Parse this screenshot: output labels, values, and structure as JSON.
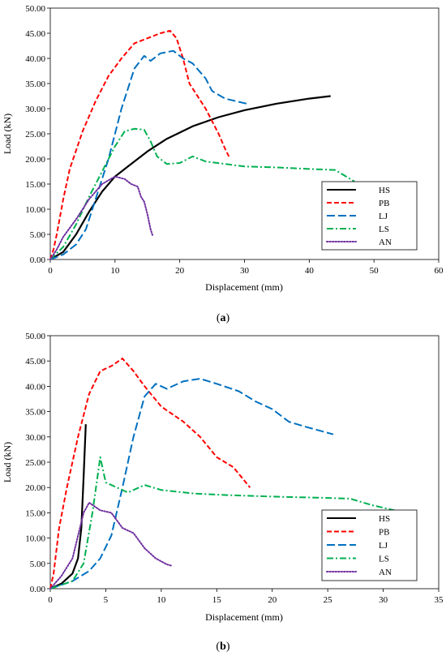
{
  "figure": {
    "panels": [
      {
        "caption_open": "(",
        "caption_letter": "a",
        "caption_close": ")"
      },
      {
        "caption_open": "(",
        "caption_letter": "b",
        "caption_close": ")"
      }
    ]
  },
  "chart_data": [
    {
      "type": "line",
      "xlabel": "Displacement (mm)",
      "ylabel": "Load (kN)",
      "xlim": [
        0,
        60
      ],
      "ylim": [
        0,
        50
      ],
      "xticks": [
        "0",
        "10",
        "20",
        "30",
        "40",
        "50",
        "60"
      ],
      "yticks": [
        "0.00",
        "5.00",
        "10.00",
        "15.00",
        "20.00",
        "25.00",
        "30.00",
        "35.00",
        "40.00",
        "45.00",
        "50.00"
      ],
      "grid": false,
      "legend": "bottom-right",
      "series": [
        {
          "name": "HS",
          "color": "#000000",
          "dash": "solid",
          "x": [
            0,
            2,
            4,
            6,
            8,
            10,
            12,
            15,
            18,
            22,
            26,
            30,
            35,
            40,
            43.3
          ],
          "y": [
            0,
            1.5,
            5,
            9.5,
            13.5,
            16.5,
            18.5,
            21.5,
            24,
            26.5,
            28.3,
            29.7,
            31,
            32,
            32.5
          ]
        },
        {
          "name": "PB",
          "color": "#ff0000",
          "dash": "dashed",
          "x": [
            0,
            0.5,
            1,
            2,
            3,
            5,
            7,
            9,
            11,
            13,
            15,
            17,
            18.5,
            19.5,
            20.5,
            21.5,
            22.5,
            24,
            26,
            27,
            27.6
          ],
          "y": [
            0,
            2,
            5,
            12,
            18,
            25.5,
            31.5,
            36.5,
            40,
            43,
            44,
            45,
            45.5,
            44,
            40,
            35,
            33,
            30,
            25,
            22,
            20.5
          ]
        },
        {
          "name": "LJ",
          "color": "#0070c0",
          "dash": "longdash",
          "x": [
            0,
            2,
            4,
            5.5,
            7,
            9,
            11,
            13,
            14.5,
            15.5,
            17,
            19,
            20.5,
            22,
            24,
            25,
            27,
            30.3
          ],
          "y": [
            0,
            1,
            3,
            6,
            12,
            20,
            30,
            38,
            40.5,
            39.5,
            41,
            41.5,
            40,
            39,
            36,
            33.5,
            32,
            31
          ]
        },
        {
          "name": "LS",
          "color": "#00b050",
          "dash": "dashdot",
          "x": [
            0,
            2,
            4,
            6,
            8,
            10,
            11.5,
            13,
            14.5,
            15.5,
            16.5,
            18,
            20,
            22,
            24,
            27,
            30,
            35,
            40,
            44,
            47
          ],
          "y": [
            0,
            2.5,
            7,
            12.5,
            17.5,
            22.5,
            25.5,
            26,
            25.8,
            23.5,
            20.5,
            19,
            19.2,
            20.5,
            19.5,
            19,
            18.5,
            18.3,
            18,
            17.8,
            15.5
          ]
        },
        {
          "name": "AN",
          "color": "#7030a0",
          "dash": "dotted",
          "x": [
            0,
            1,
            2,
            4,
            6,
            8,
            10,
            11.5,
            12.5,
            13.5,
            14,
            14.5,
            15,
            15.5,
            15.8
          ],
          "y": [
            0,
            2,
            4.5,
            8,
            12,
            15,
            16.5,
            16,
            15,
            14.5,
            12.5,
            11.5,
            9,
            6,
            4.8
          ]
        }
      ]
    },
    {
      "type": "line",
      "xlabel": "Displacement (mm)",
      "ylabel": "Load (kN)",
      "xlim": [
        0,
        35
      ],
      "ylim": [
        0,
        50
      ],
      "xticks": [
        "0",
        "5",
        "10",
        "15",
        "20",
        "25",
        "30",
        "35"
      ],
      "yticks": [
        "0.00",
        "5.00",
        "10.00",
        "15.00",
        "20.00",
        "25.00",
        "30.00",
        "35.00",
        "40.00",
        "45.00",
        "50.00"
      ],
      "grid": false,
      "legend": "bottom-right",
      "series": [
        {
          "name": "HS",
          "color": "#000000",
          "dash": "solid",
          "x": [
            0,
            1,
            2,
            2.5,
            2.8,
            3.0,
            3.2
          ],
          "y": [
            0,
            1,
            3,
            6,
            12,
            22,
            32.5
          ]
        },
        {
          "name": "PB",
          "color": "#ff0000",
          "dash": "dashed",
          "x": [
            0,
            0.3,
            0.8,
            1.5,
            2.5,
            3.5,
            4.5,
            5.5,
            6.5,
            7.5,
            8.5,
            10,
            12,
            13.5,
            15,
            16.5,
            18
          ],
          "y": [
            0,
            3,
            12,
            20,
            30,
            38.5,
            43,
            44,
            45.5,
            43,
            40,
            36,
            33,
            30,
            26,
            24,
            20
          ]
        },
        {
          "name": "LJ",
          "color": "#0070c0",
          "dash": "longdash",
          "x": [
            0,
            2,
            3.5,
            4.5,
            5.5,
            6.5,
            7.5,
            8.5,
            9.5,
            10.5,
            12,
            13.5,
            15,
            17,
            18.5,
            20,
            21.5,
            23,
            25.5
          ],
          "y": [
            0,
            1.5,
            3.5,
            6,
            10.5,
            20,
            30,
            38,
            40.5,
            39.5,
            41,
            41.5,
            40.5,
            39,
            37,
            35.5,
            33,
            32,
            30.5
          ]
        },
        {
          "name": "LS",
          "color": "#00b050",
          "dash": "dashdot",
          "x": [
            0,
            2,
            3,
            3.8,
            4.5,
            5,
            6,
            7,
            8.5,
            10,
            13,
            16,
            20,
            24,
            27,
            29,
            31
          ],
          "y": [
            0,
            1.5,
            5,
            15,
            26,
            21,
            20,
            19,
            20.5,
            19.5,
            18.8,
            18.5,
            18.2,
            18,
            17.8,
            16.5,
            15.5
          ]
        },
        {
          "name": "AN",
          "color": "#7030a0",
          "dash": "dotted",
          "x": [
            0,
            1,
            2,
            3,
            3.5,
            4.5,
            5.5,
            6.5,
            7.5,
            8.5,
            9.5,
            10.5,
            11
          ],
          "y": [
            0,
            2.5,
            6,
            15,
            17,
            15.5,
            15,
            12,
            11,
            8,
            6,
            4.8,
            4.5
          ]
        }
      ]
    }
  ]
}
